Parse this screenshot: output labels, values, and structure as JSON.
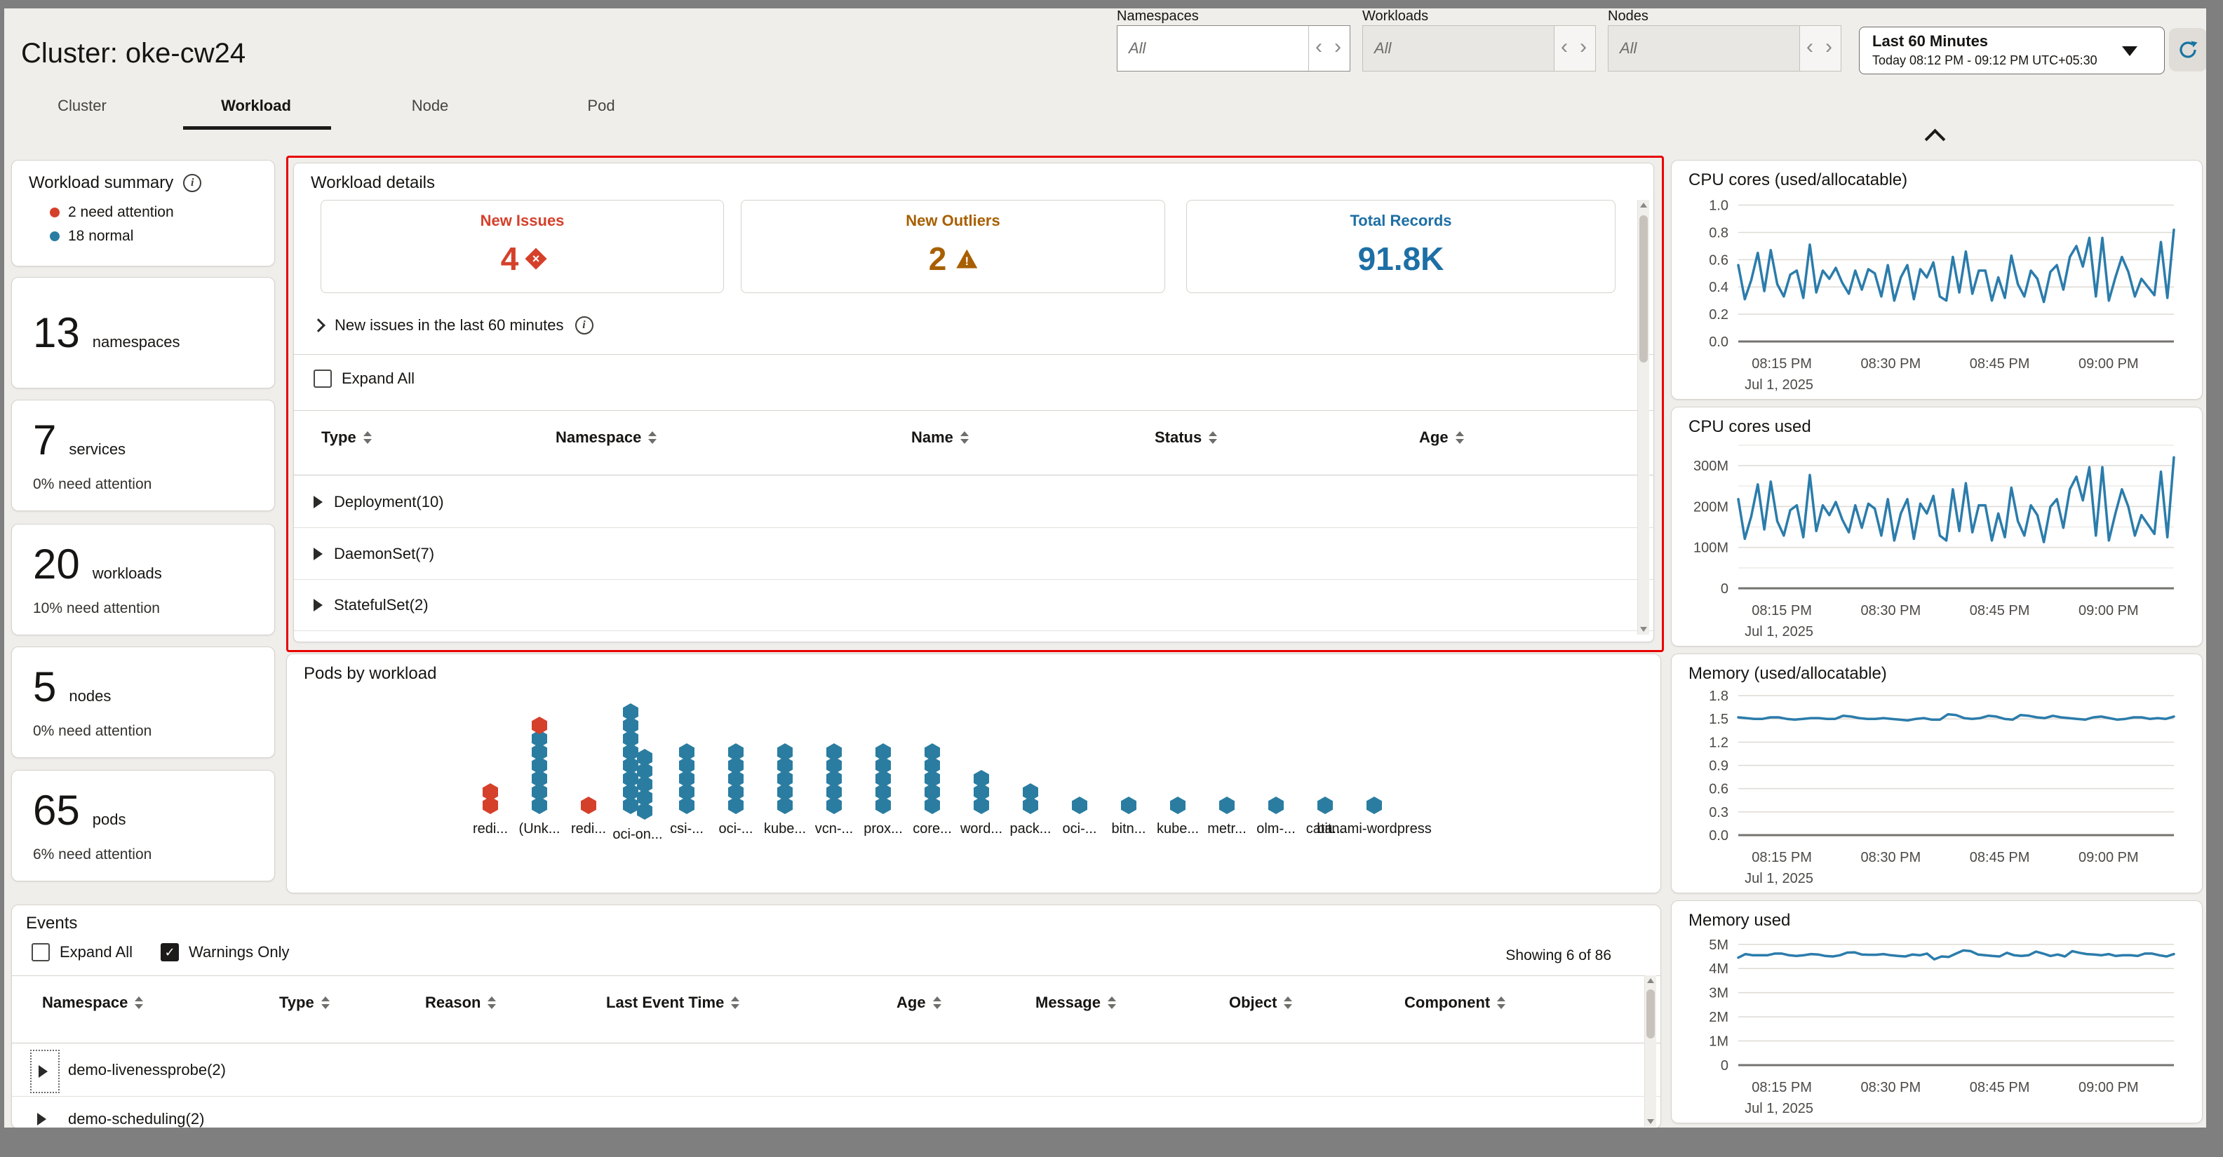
{
  "window": {
    "backdrop_color": "#7f7f7f",
    "page_bg": "#f0eeeb"
  },
  "header": {
    "title": "Cluster: oke-cw24",
    "tabs": [
      {
        "label": "Cluster",
        "active": false
      },
      {
        "label": "Workload",
        "active": true
      },
      {
        "label": "Node",
        "active": false
      },
      {
        "label": "Pod",
        "active": false
      }
    ]
  },
  "filters": {
    "namespaces": {
      "label": "Namespaces",
      "value": "All"
    },
    "workloads": {
      "label": "Workloads",
      "value": "All"
    },
    "nodes": {
      "label": "Nodes",
      "value": "All"
    }
  },
  "time_range": {
    "primary": "Last 60 Minutes",
    "secondary": "Today 08:12 PM - 09:12 PM UTC+05:30"
  },
  "sidebar": {
    "summary": {
      "title": "Workload summary",
      "legend": [
        {
          "label": "2 need attention",
          "color": "#d5402b"
        },
        {
          "label": "18 normal",
          "color": "#2a7da1"
        }
      ]
    },
    "stats": [
      {
        "value": "13",
        "label": "namespaces",
        "note": ""
      },
      {
        "value": "7",
        "label": "services",
        "note": "0% need attention"
      },
      {
        "value": "20",
        "label": "workloads",
        "note": "10% need attention"
      },
      {
        "value": "5",
        "label": "nodes",
        "note": "0% need attention"
      },
      {
        "value": "65",
        "label": "pods",
        "note": "6% need attention"
      }
    ]
  },
  "workload_details": {
    "title": "Workload details",
    "kpis": [
      {
        "label": "New Issues",
        "value": "4",
        "color": "#d5402b",
        "icon": "issue-diamond"
      },
      {
        "label": "New Outliers",
        "value": "2",
        "color": "#a85f00",
        "icon": "warning-triangle"
      },
      {
        "label": "Total Records",
        "value": "91.8K",
        "color": "#1d6fa5",
        "icon": "none"
      }
    ],
    "disclosure_label": "New issues in the last 60 minutes",
    "expand_all_label": "Expand All",
    "columns": [
      "Type",
      "Namespace",
      "Name",
      "Status",
      "Age"
    ],
    "rows": [
      "Deployment(10)",
      "DaemonSet(7)",
      "StatefulSet(2)"
    ]
  },
  "events": {
    "title": "Events",
    "expand_all_label": "Expand All",
    "warnings_only_label": "Warnings Only",
    "warnings_only_checked": true,
    "showing": "Showing 6 of 86",
    "columns": [
      "Namespace",
      "Type",
      "Reason",
      "Last Event Time",
      "Age",
      "Message",
      "Object",
      "Component"
    ],
    "rows": [
      "demo-livenessprobe(2)",
      "demo-scheduling(2)"
    ]
  },
  "chart_data": [
    {
      "type": "line",
      "title": "CPU cores (used/allocatable)",
      "ylim": [
        0,
        1.08
      ],
      "yticks": [
        {
          "v": 1.0,
          "label": "1.0"
        },
        {
          "v": 0.8,
          "label": "0.8"
        },
        {
          "v": 0.6,
          "label": "0.6"
        },
        {
          "v": 0.4,
          "label": "0.4"
        },
        {
          "v": 0.2,
          "label": "0.2"
        },
        {
          "v": 0,
          "label": "0.0"
        }
      ],
      "xticks": [
        "08:15 PM",
        "08:30 PM",
        "08:45 PM",
        "09:00 PM"
      ],
      "x_date": "Jul 1, 2025",
      "line_color": "#2b7cab",
      "grid": true,
      "legend": "none",
      "values": [
        0.56,
        0.31,
        0.45,
        0.65,
        0.37,
        0.67,
        0.42,
        0.33,
        0.49,
        0.52,
        0.32,
        0.71,
        0.36,
        0.52,
        0.46,
        0.54,
        0.43,
        0.35,
        0.52,
        0.38,
        0.53,
        0.5,
        0.33,
        0.56,
        0.3,
        0.47,
        0.56,
        0.31,
        0.53,
        0.47,
        0.58,
        0.33,
        0.3,
        0.62,
        0.36,
        0.66,
        0.35,
        0.52,
        0.52,
        0.3,
        0.47,
        0.32,
        0.63,
        0.42,
        0.33,
        0.52,
        0.46,
        0.29,
        0.51,
        0.56,
        0.38,
        0.62,
        0.7,
        0.55,
        0.76,
        0.33,
        0.76,
        0.3,
        0.47,
        0.62,
        0.51,
        0.33,
        0.46,
        0.4,
        0.34,
        0.73,
        0.32,
        0.82
      ]
    },
    {
      "type": "line",
      "title": "CPU cores used",
      "ylim": [
        0,
        360
      ],
      "yticks": [
        {
          "v": 300,
          "label": "300M"
        },
        {
          "v": 200,
          "label": "200M"
        },
        {
          "v": 100,
          "label": "100M"
        },
        {
          "v": 0,
          "label": "0"
        }
      ],
      "minor_grid_step": 50,
      "xticks": [
        "08:15 PM",
        "08:30 PM",
        "08:45 PM",
        "09:00 PM"
      ],
      "x_date": "Jul 1, 2025",
      "line_color": "#2b7cab",
      "grid": true,
      "legend": "none",
      "values": [
        218,
        121,
        176,
        254,
        144,
        261,
        164,
        129,
        191,
        203,
        125,
        277,
        140,
        203,
        179,
        211,
        168,
        137,
        203,
        148,
        207,
        195,
        129,
        218,
        117,
        183,
        218,
        121,
        207,
        183,
        226,
        129,
        117,
        242,
        140,
        257,
        137,
        203,
        203,
        117,
        183,
        125,
        246,
        164,
        129,
        203,
        179,
        113,
        199,
        218,
        148,
        242,
        273,
        215,
        296,
        129,
        296,
        117,
        183,
        242,
        199,
        129,
        179,
        156,
        133,
        285,
        125,
        320
      ]
    },
    {
      "type": "line",
      "title": "Memory (used/allocatable)",
      "ylim": [
        0,
        1.9
      ],
      "yticks": [
        {
          "v": 1.8,
          "label": "1.8"
        },
        {
          "v": 1.5,
          "label": "1.5"
        },
        {
          "v": 1.2,
          "label": "1.2"
        },
        {
          "v": 0.9,
          "label": "0.9"
        },
        {
          "v": 0.6,
          "label": "0.6"
        },
        {
          "v": 0.3,
          "label": "0.3"
        },
        {
          "v": 0,
          "label": "0.0"
        }
      ],
      "xticks": [
        "08:15 PM",
        "08:30 PM",
        "08:45 PM",
        "09:00 PM"
      ],
      "x_date": "Jul 1, 2025",
      "line_color": "#2b7cab",
      "grid": true,
      "legend": "none",
      "values": [
        1.52,
        1.51,
        1.5,
        1.5,
        1.52,
        1.52,
        1.5,
        1.49,
        1.5,
        1.51,
        1.51,
        1.5,
        1.5,
        1.54,
        1.53,
        1.51,
        1.5,
        1.5,
        1.51,
        1.5,
        1.49,
        1.48,
        1.5,
        1.51,
        1.49,
        1.49,
        1.56,
        1.55,
        1.51,
        1.5,
        1.51,
        1.54,
        1.53,
        1.5,
        1.49,
        1.55,
        1.54,
        1.52,
        1.51,
        1.54,
        1.52,
        1.51,
        1.5,
        1.49,
        1.52,
        1.53,
        1.51,
        1.49,
        1.5,
        1.52,
        1.52,
        1.5,
        1.51,
        1.5,
        1.53
      ]
    },
    {
      "type": "line",
      "title": "Memory used",
      "ylim": [
        0,
        5.4
      ],
      "yticks": [
        {
          "v": 5,
          "label": "5M"
        },
        {
          "v": 4,
          "label": "4M"
        },
        {
          "v": 3,
          "label": "3M"
        },
        {
          "v": 2,
          "label": "2M"
        },
        {
          "v": 1,
          "label": "1M"
        },
        {
          "v": 0,
          "label": "0"
        }
      ],
      "xticks": [
        "08:15 PM",
        "08:30 PM",
        "08:45 PM",
        "09:00 PM"
      ],
      "x_date": "Jul 1, 2025",
      "line_color": "#2b7cab",
      "grid": true,
      "legend": "none",
      "values": [
        4.45,
        4.6,
        4.55,
        4.55,
        4.55,
        4.62,
        4.62,
        4.55,
        4.52,
        4.55,
        4.6,
        4.58,
        4.52,
        4.5,
        4.55,
        4.66,
        4.67,
        4.58,
        4.57,
        4.57,
        4.6,
        4.55,
        4.52,
        4.5,
        4.58,
        4.55,
        4.62,
        4.38,
        4.5,
        4.48,
        4.62,
        4.75,
        4.72,
        4.58,
        4.55,
        4.52,
        4.5,
        4.65,
        4.55,
        4.52,
        4.55,
        4.7,
        4.62,
        4.52,
        4.58,
        4.5,
        4.72,
        4.65,
        4.6,
        4.58,
        4.55,
        4.6,
        4.52,
        4.55,
        4.55,
        4.52,
        4.62,
        4.62,
        4.55,
        4.5,
        4.6
      ]
    },
    {
      "type": "dot-column",
      "title": "Pods by workload",
      "categories": [
        "redi...",
        "(Unk...",
        "redi...",
        "oci-on...",
        "csi-...",
        "oci-...",
        "kube...",
        "vcn-...",
        "prox...",
        "core...",
        "word...",
        "pack...",
        "oci-...",
        "bitn...",
        "kube...",
        "metr...",
        "olm-...",
        "cata...",
        "bitnami-wordpress"
      ],
      "values": [
        2,
        7,
        1,
        13,
        5,
        5,
        5,
        5,
        5,
        5,
        3,
        2,
        1,
        1,
        1,
        1,
        1,
        1,
        1
      ],
      "attention_counts": [
        2,
        1,
        1,
        0,
        0,
        0,
        0,
        0,
        0,
        0,
        0,
        0,
        0,
        0,
        0,
        0,
        0,
        0,
        0
      ],
      "colors": {
        "normal": "#2a7da1",
        "attention": "#d5402b"
      }
    }
  ]
}
